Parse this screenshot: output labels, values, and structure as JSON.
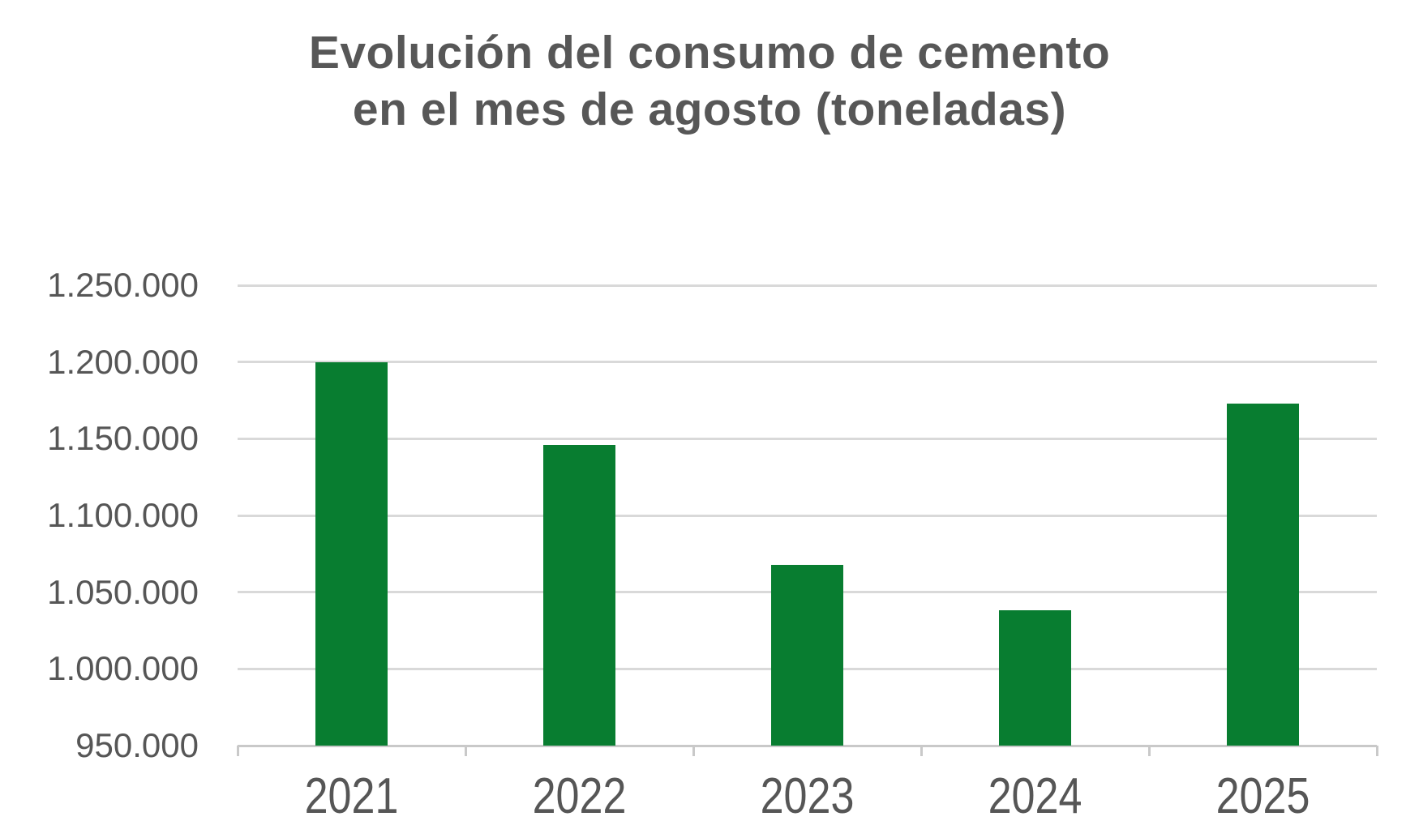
{
  "chart": {
    "title_lines": [
      "Evolución del consumo de cemento",
      "en el mes de agosto (toneladas)"
    ],
    "colors": {
      "bar": "#087d30",
      "gridline": "#d9d9d9",
      "axis_line": "#c9c9c9",
      "title_text": "#575757",
      "tick_text": "#565656",
      "background": "#ffffff"
    }
  },
  "chart_data": {
    "type": "bar",
    "title": "Evolución del consumo de cemento en el mes de agosto (toneladas)",
    "categories": [
      "2021",
      "2022",
      "2023",
      "2024",
      "2025"
    ],
    "values": [
      1200000,
      1146000,
      1068000,
      1038000,
      1173000
    ],
    "xlabel": "",
    "ylabel": "",
    "ylim": [
      950000,
      1250000
    ],
    "ytick_step": 50000,
    "ytick_labels": [
      "950.000",
      "1.000.000",
      "1.050.000",
      "1.100.000",
      "1.150.000",
      "1.200.000",
      "1.250.000"
    ],
    "grid": true,
    "legend": false,
    "bar_color": "#087d30"
  }
}
